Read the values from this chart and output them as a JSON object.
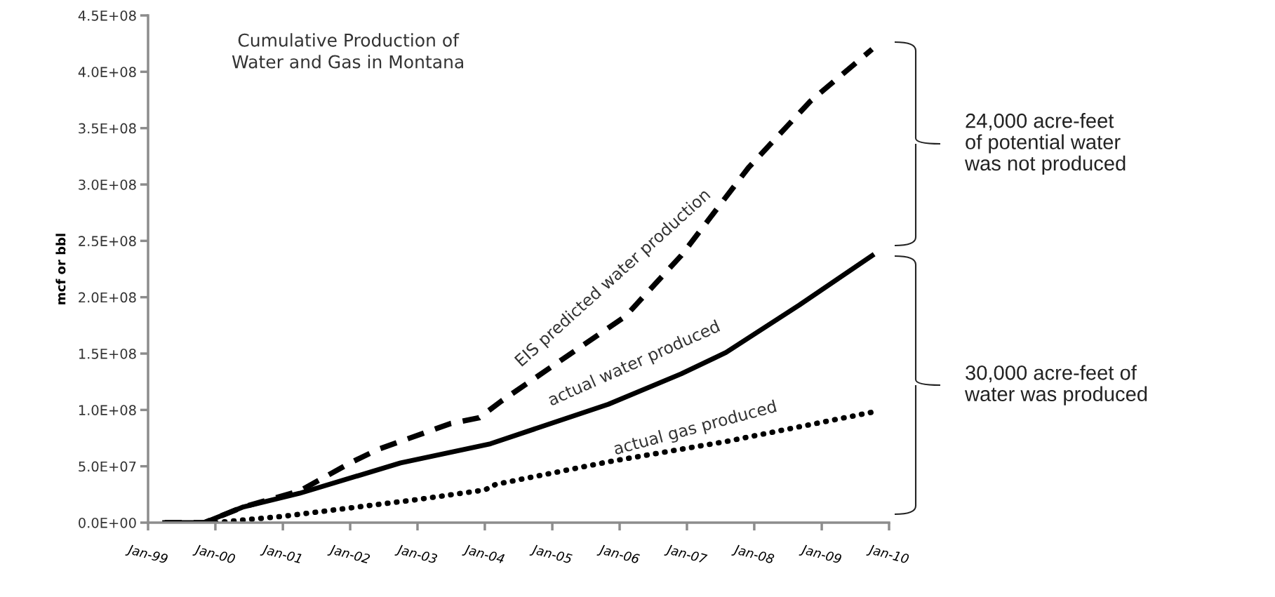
{
  "chart_data": {
    "type": "line",
    "title": "Cumulative Production of\nWater and Gas in Montana",
    "ylabel": "mcf or bbl",
    "xlim": [
      "1999-01",
      "2010-01"
    ],
    "xticks": [
      {
        "value": "1999-01",
        "label": "Jan-99"
      },
      {
        "value": "2000-01",
        "label": "Jan-00"
      },
      {
        "value": "2001-01",
        "label": "Jan-01"
      },
      {
        "value": "2002-01",
        "label": "Jan-02"
      },
      {
        "value": "2003-01",
        "label": "Jan-03"
      },
      {
        "value": "2004-01",
        "label": "Jan-04"
      },
      {
        "value": "2005-01",
        "label": "Jan-05"
      },
      {
        "value": "2006-01",
        "label": "Jan-06"
      },
      {
        "value": "2007-01",
        "label": "Jan-07"
      },
      {
        "value": "2008-01",
        "label": "Jan-08"
      },
      {
        "value": "2009-01",
        "label": "Jan-09"
      },
      {
        "value": "2010-01",
        "label": "Jan-10"
      }
    ],
    "ylim": [
      0,
      450000000
    ],
    "yticks": [
      {
        "value": 0,
        "label": "0.0E+00"
      },
      {
        "value": 50000000,
        "label": "5.0E+07"
      },
      {
        "value": 100000000,
        "label": "1.0E+08"
      },
      {
        "value": 150000000,
        "label": "1.5E+08"
      },
      {
        "value": 200000000,
        "label": "2.0E+08"
      },
      {
        "value": 250000000,
        "label": "2.5E+08"
      },
      {
        "value": 300000000,
        "label": "3.0E+08"
      },
      {
        "value": 350000000,
        "label": "3.5E+08"
      },
      {
        "value": 400000000,
        "label": "4.0E+08"
      },
      {
        "value": 450000000,
        "label": "4.5E+08"
      }
    ],
    "grid": false,
    "legend": false,
    "marker": "none",
    "series": [
      {
        "color": "#000000",
        "line_style": "dashed",
        "x": [
          "1999-04",
          "1999-11",
          "2000-06",
          "2001-04",
          "2002-01",
          "2002-06",
          "2003-07",
          "2003-12",
          "2004-04",
          "2006-02",
          "2006-12",
          "2007-12",
          "2008-11",
          "2009-10"
        ],
        "values": [
          0,
          0,
          14000000,
          28000000,
          53000000,
          65000000,
          88000000,
          93000000,
          108000000,
          183000000,
          237000000,
          315000000,
          374000000,
          420000000
        ]
      },
      {
        "color": "#000000",
        "line_style": "solid",
        "x": [
          "1999-04",
          "1999-11",
          "2000-06",
          "2001-04",
          "2002-10",
          "2004-02",
          "2005-11",
          "2006-12",
          "2007-08",
          "2008-09",
          "2009-10"
        ],
        "values": [
          0,
          0,
          14000000,
          26000000,
          53000000,
          70000000,
          105000000,
          132000000,
          151000000,
          193000000,
          237000000
        ]
      },
      {
        "color": "#000000",
        "line_style": "dotted",
        "x": [
          "2000-01",
          "2001-01",
          "2003-01",
          "2004-01",
          "2004-03",
          "2005-11",
          "2007-08",
          "2009-10"
        ],
        "values": [
          0,
          5600000,
          20500000,
          29000000,
          34000000,
          54000000,
          72000000,
          98000000
        ]
      }
    ],
    "annotations": [
      "EIS predicted water production",
      "actual water produced",
      "actual gas produced",
      "24,000 acre-feet\nof potential water\nwas not produced",
      "30,000 acre-feet of\nwater was produced"
    ]
  }
}
